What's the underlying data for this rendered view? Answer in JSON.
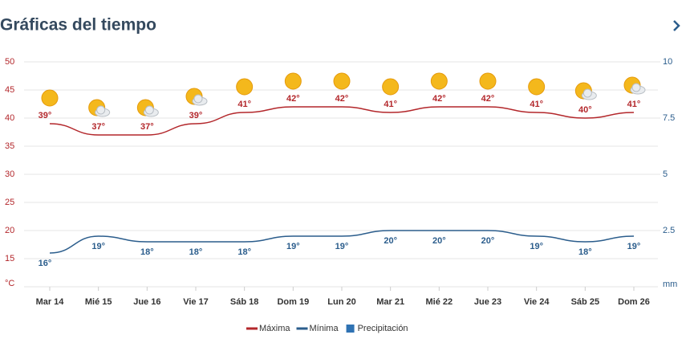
{
  "chart_data": {
    "type": "line",
    "title": "Gráficas del tiempo",
    "categories": [
      "Mar 14",
      "Mié 15",
      "Jue 16",
      "Vie 17",
      "Sáb 18",
      "Dom 19",
      "Lun 20",
      "Mar 21",
      "Mié 22",
      "Jue 23",
      "Vie 24",
      "Sáb 25",
      "Dom 26"
    ],
    "series": [
      {
        "name": "Máxima",
        "color": "#b3272b",
        "values": [
          39,
          37,
          37,
          39,
          41,
          42,
          42,
          41,
          42,
          42,
          41,
          40,
          41
        ],
        "value_labels": [
          "39°",
          "37°",
          "37°",
          "39°",
          "41°",
          "42°",
          "42°",
          "41°",
          "42°",
          "42°",
          "41°",
          "40°",
          "41°"
        ]
      },
      {
        "name": "Mínima",
        "color": "#2b5d8c",
        "values": [
          16,
          19,
          18,
          18,
          18,
          19,
          19,
          20,
          20,
          20,
          19,
          18,
          19
        ],
        "value_labels": [
          "16°",
          "19°",
          "18°",
          "18°",
          "18°",
          "19°",
          "19°",
          "20°",
          "20°",
          "20°",
          "19°",
          "18°",
          "19°"
        ]
      },
      {
        "name": "Precipitación",
        "color": "#2f72b3",
        "axis": "y2",
        "values": [
          null,
          null,
          null,
          null,
          null,
          null,
          null,
          null,
          null,
          null,
          null,
          null,
          null
        ]
      }
    ],
    "ylim": [
      10,
      50
    ],
    "yticks": [
      15,
      20,
      25,
      30,
      35,
      40,
      45,
      50
    ],
    "y_unit": "°C",
    "y2lim": [
      0,
      10
    ],
    "y2ticks": [
      2.5,
      5,
      7.5,
      10
    ],
    "y2_unit": "mm",
    "grid": true
  }
}
